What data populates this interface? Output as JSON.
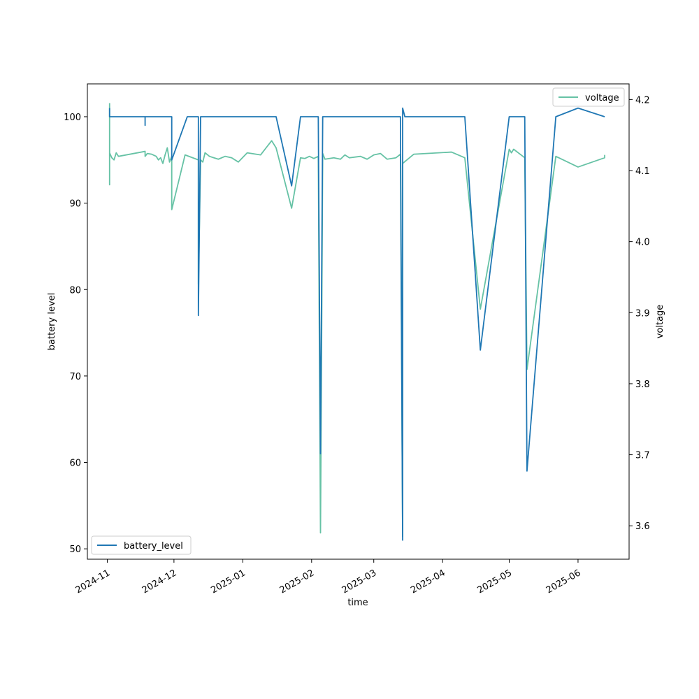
{
  "chart_data": {
    "type": "line",
    "title": "",
    "xlabel": "time",
    "ylabel_left": "battery level",
    "ylabel_right": "voltage",
    "x_ticks": [
      "2024-11",
      "2024-12",
      "2025-01",
      "2025-02",
      "2025-03",
      "2025-04",
      "2025-05",
      "2025-06"
    ],
    "y_left_ticks": [
      "50",
      "60",
      "70",
      "80",
      "90",
      "100"
    ],
    "y_right_ticks": [
      "3.6",
      "3.7",
      "3.8",
      "3.9",
      "4.0",
      "4.1",
      "4.2"
    ],
    "xlim": [
      "2024-10-23",
      "2025-06-24"
    ],
    "ylim_left": [
      48.8,
      103.8
    ],
    "ylim_right": [
      3.553,
      4.222
    ],
    "grid": false,
    "legends": [
      {
        "placement": "lower-left",
        "entries": [
          "battery_level"
        ]
      },
      {
        "placement": "upper-right",
        "entries": [
          "voltage"
        ]
      }
    ],
    "colors": {
      "battery_level": "#1f77b4",
      "voltage": "#66c2a5"
    },
    "series": [
      {
        "name": "battery_level",
        "axis": "left",
        "points": [
          [
            "2024-11-02",
            101
          ],
          [
            "2024-11-02",
            100
          ],
          [
            "2024-11-18",
            100
          ],
          [
            "2024-11-18",
            99
          ],
          [
            "2024-11-18",
            100
          ],
          [
            "2024-11-30",
            100
          ],
          [
            "2024-11-30",
            95
          ],
          [
            "2024-12-07",
            100
          ],
          [
            "2024-12-12",
            100
          ],
          [
            "2024-12-12",
            77
          ],
          [
            "2024-12-13",
            100
          ],
          [
            "2025-01-16",
            100
          ],
          [
            "2025-01-23",
            92
          ],
          [
            "2025-01-27",
            100
          ],
          [
            "2025-02-04",
            100
          ],
          [
            "2025-02-05",
            61
          ],
          [
            "2025-02-06",
            100
          ],
          [
            "2025-03-13",
            100
          ],
          [
            "2025-03-14",
            51
          ],
          [
            "2025-03-14",
            101
          ],
          [
            "2025-03-15",
            100
          ],
          [
            "2025-04-11",
            100
          ],
          [
            "2025-04-18",
            73
          ],
          [
            "2025-05-01",
            100
          ],
          [
            "2025-05-08",
            100
          ],
          [
            "2025-05-09",
            59
          ],
          [
            "2025-05-22",
            100
          ],
          [
            "2025-06-01",
            101
          ],
          [
            "2025-06-13",
            100
          ]
        ]
      },
      {
        "name": "voltage",
        "axis": "right",
        "points": [
          [
            "2024-11-02",
            4.195
          ],
          [
            "2024-11-02",
            4.08
          ],
          [
            "2024-11-02",
            4.125
          ],
          [
            "2024-11-03",
            4.118
          ],
          [
            "2024-11-04",
            4.115
          ],
          [
            "2024-11-05",
            4.125
          ],
          [
            "2024-11-06",
            4.12
          ],
          [
            "2024-11-18",
            4.127
          ],
          [
            "2024-11-18",
            4.12
          ],
          [
            "2024-11-19",
            4.124
          ],
          [
            "2024-11-21",
            4.123
          ],
          [
            "2024-11-23",
            4.12
          ],
          [
            "2024-11-24",
            4.115
          ],
          [
            "2024-11-25",
            4.118
          ],
          [
            "2024-11-26",
            4.11
          ],
          [
            "2024-11-27",
            4.122
          ],
          [
            "2024-11-28",
            4.132
          ],
          [
            "2024-11-29",
            4.112
          ],
          [
            "2024-11-30",
            4.12
          ],
          [
            "2024-11-30",
            4.045
          ],
          [
            "2024-12-06",
            4.122
          ],
          [
            "2024-12-12",
            4.115
          ],
          [
            "2024-12-12",
            3.94
          ],
          [
            "2024-12-13",
            4.115
          ],
          [
            "2024-12-14",
            4.112
          ],
          [
            "2024-12-15",
            4.125
          ],
          [
            "2024-12-17",
            4.12
          ],
          [
            "2024-12-19",
            4.118
          ],
          [
            "2024-12-21",
            4.116
          ],
          [
            "2024-12-24",
            4.12
          ],
          [
            "2024-12-27",
            4.118
          ],
          [
            "2024-12-30",
            4.112
          ],
          [
            "2025-01-03",
            4.125
          ],
          [
            "2025-01-09",
            4.122
          ],
          [
            "2025-01-14",
            4.142
          ],
          [
            "2025-01-16",
            4.132
          ],
          [
            "2025-01-23",
            4.047
          ],
          [
            "2025-01-27",
            4.118
          ],
          [
            "2025-01-29",
            4.117
          ],
          [
            "2025-01-31",
            4.12
          ],
          [
            "2025-02-02",
            4.117
          ],
          [
            "2025-02-04",
            4.12
          ],
          [
            "2025-02-05",
            3.59
          ],
          [
            "2025-02-06",
            4.124
          ],
          [
            "2025-02-07",
            4.116
          ],
          [
            "2025-02-11",
            4.118
          ],
          [
            "2025-02-14",
            4.116
          ],
          [
            "2025-02-16",
            4.122
          ],
          [
            "2025-02-18",
            4.118
          ],
          [
            "2025-02-23",
            4.12
          ],
          [
            "2025-02-26",
            4.116
          ],
          [
            "2025-03-01",
            4.122
          ],
          [
            "2025-03-04",
            4.124
          ],
          [
            "2025-03-07",
            4.116
          ],
          [
            "2025-03-11",
            4.118
          ],
          [
            "2025-03-13",
            4.123
          ],
          [
            "2025-03-14",
            3.585
          ],
          [
            "2025-03-14",
            4.11
          ],
          [
            "2025-03-19",
            4.123
          ],
          [
            "2025-04-05",
            4.126
          ],
          [
            "2025-04-11",
            4.118
          ],
          [
            "2025-04-18",
            3.905
          ],
          [
            "2025-05-01",
            4.13
          ],
          [
            "2025-05-02",
            4.125
          ],
          [
            "2025-05-03",
            4.13
          ],
          [
            "2025-05-08",
            4.118
          ],
          [
            "2025-05-09",
            3.82
          ],
          [
            "2025-05-22",
            4.12
          ],
          [
            "2025-06-01",
            4.105
          ],
          [
            "2025-06-13",
            4.118
          ],
          [
            "2025-06-13",
            4.122
          ]
        ]
      }
    ]
  }
}
